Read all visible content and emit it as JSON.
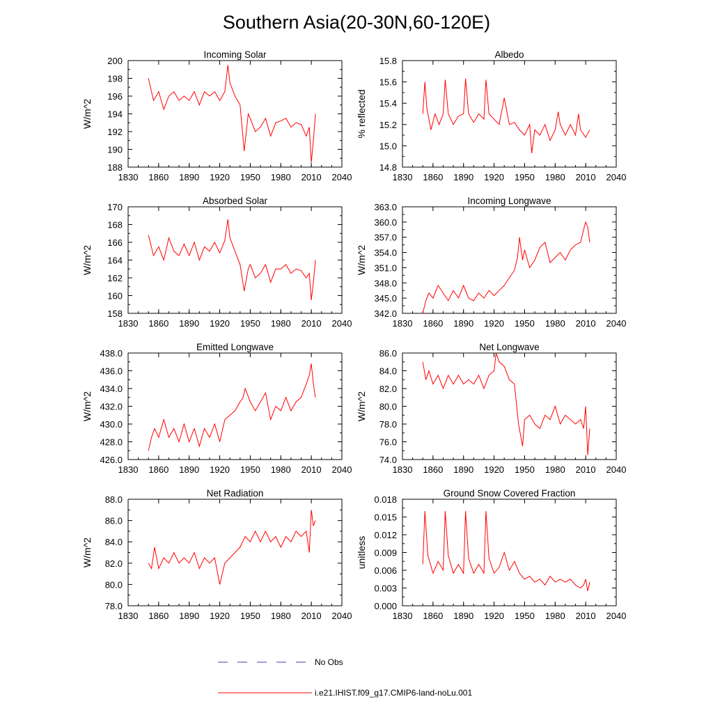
{
  "figure": {
    "title": "Southern Asia(20-30N,60-120E)",
    "legend": [
      {
        "label": "No Obs",
        "style": "dashed",
        "color": "#3b3bb0"
      },
      {
        "label": "i.e21.IHIST.f09_g17.CMIP6-land-noLu.001",
        "style": "solid",
        "color": "#ff0000"
      }
    ]
  },
  "chart_data": [
    {
      "type": "line",
      "title": "Incoming Solar",
      "xlabel": "",
      "ylabel": "W/m^2",
      "xlim": [
        1830,
        2040
      ],
      "ylim": [
        188,
        200
      ],
      "xticks": [
        "1830",
        "1860",
        "1890",
        "1920",
        "1950",
        "1980",
        "2010",
        "2040"
      ],
      "yticks": [
        "188",
        "190",
        "192",
        "194",
        "196",
        "198",
        "200"
      ],
      "series": [
        {
          "name": "i.e21.IHIST.f09_g17.CMIP6-land-noLu.001",
          "color": "#ff0000",
          "x": [
            1850,
            1855,
            1860,
            1865,
            1870,
            1875,
            1880,
            1885,
            1890,
            1895,
            1900,
            1905,
            1910,
            1915,
            1920,
            1925,
            1928,
            1930,
            1935,
            1940,
            1944,
            1948,
            1950,
            1955,
            1960,
            1965,
            1970,
            1975,
            1980,
            1985,
            1990,
            1995,
            2000,
            2005,
            2008,
            2010,
            2012,
            2014
          ],
          "values": [
            198,
            195.5,
            196.5,
            194.5,
            196,
            196.5,
            195.5,
            196,
            195.5,
            196.5,
            195,
            196.5,
            196,
            196.5,
            195.5,
            196.5,
            199.5,
            197.5,
            196,
            195,
            189.8,
            194,
            193.5,
            192,
            192.5,
            193.5,
            191.5,
            193,
            193.2,
            193.5,
            192.5,
            193,
            192.8,
            191.5,
            192.5,
            188.5,
            191,
            194
          ]
        }
      ]
    },
    {
      "type": "line",
      "title": "Albedo",
      "xlabel": "",
      "ylabel": "% reflected",
      "xlim": [
        1830,
        2040
      ],
      "ylim": [
        14.8,
        15.8
      ],
      "xticks": [
        "1830",
        "1860",
        "1890",
        "1920",
        "1950",
        "1980",
        "2010",
        "2040"
      ],
      "yticks": [
        "14.8",
        "15.0",
        "15.2",
        "15.4",
        "15.6",
        "15.8"
      ],
      "series": [
        {
          "name": "i.e21.IHIST.f09_g17.CMIP6-land-noLu.001",
          "color": "#ff0000",
          "x": [
            1850,
            1852,
            1854,
            1858,
            1862,
            1866,
            1870,
            1872,
            1875,
            1880,
            1885,
            1890,
            1892,
            1895,
            1900,
            1905,
            1910,
            1912,
            1915,
            1920,
            1925,
            1930,
            1935,
            1940,
            1945,
            1950,
            1955,
            1957,
            1960,
            1965,
            1970,
            1975,
            1980,
            1983,
            1985,
            1990,
            1995,
            2000,
            2003,
            2005,
            2010,
            2014
          ],
          "values": [
            15.3,
            15.6,
            15.35,
            15.15,
            15.3,
            15.2,
            15.3,
            15.62,
            15.3,
            15.2,
            15.28,
            15.3,
            15.63,
            15.3,
            15.22,
            15.3,
            15.25,
            15.62,
            15.3,
            15.25,
            15.2,
            15.45,
            15.2,
            15.22,
            15.15,
            15.1,
            15.2,
            14.93,
            15.15,
            15.1,
            15.2,
            15.05,
            15.15,
            15.32,
            15.2,
            15.1,
            15.2,
            15.1,
            15.3,
            15.15,
            15.08,
            15.15
          ]
        }
      ]
    },
    {
      "type": "line",
      "title": "Absorbed Solar",
      "xlabel": "",
      "ylabel": "W/m^2",
      "xlim": [
        1830,
        2040
      ],
      "ylim": [
        158,
        170
      ],
      "xticks": [
        "1830",
        "1860",
        "1890",
        "1920",
        "1950",
        "1980",
        "2010",
        "2040"
      ],
      "yticks": [
        "158",
        "160",
        "162",
        "164",
        "166",
        "168",
        "170"
      ],
      "series": [
        {
          "name": "i.e21.IHIST.f09_g17.CMIP6-land-noLu.001",
          "color": "#ff0000",
          "x": [
            1850,
            1855,
            1860,
            1865,
            1870,
            1875,
            1880,
            1885,
            1890,
            1895,
            1900,
            1905,
            1910,
            1915,
            1920,
            1925,
            1928,
            1930,
            1935,
            1940,
            1944,
            1948,
            1950,
            1955,
            1960,
            1965,
            1970,
            1975,
            1980,
            1985,
            1990,
            1995,
            2000,
            2005,
            2008,
            2010,
            2012,
            2014
          ],
          "values": [
            166.8,
            164.5,
            165.5,
            164,
            166.5,
            165,
            164.5,
            165.8,
            164.5,
            166,
            164,
            165.5,
            165,
            166,
            164.8,
            166.2,
            168.6,
            166.5,
            165,
            163.5,
            160.5,
            163,
            163.5,
            162,
            162.5,
            163.5,
            161.5,
            163,
            163,
            163.5,
            162.5,
            163,
            162.8,
            162,
            162.5,
            159.5,
            161.5,
            164
          ]
        }
      ]
    },
    {
      "type": "line",
      "title": "Incoming Longwave",
      "xlabel": "",
      "ylabel": "W/m^2",
      "xlim": [
        1830,
        2040
      ],
      "ylim": [
        342,
        363
      ],
      "xticks": [
        "1830",
        "1860",
        "1890",
        "1920",
        "1950",
        "1980",
        "2010",
        "2040"
      ],
      "yticks": [
        "342.0",
        "345.0",
        "348.0",
        "351.0",
        "354.0",
        "357.0",
        "360.0",
        "363.0"
      ],
      "series": [
        {
          "name": "i.e21.IHIST.f09_g17.CMIP6-land-noLu.001",
          "color": "#ff0000",
          "x": [
            1850,
            1853,
            1856,
            1860,
            1865,
            1870,
            1875,
            1880,
            1885,
            1890,
            1895,
            1900,
            1905,
            1910,
            1915,
            1920,
            1925,
            1930,
            1935,
            1940,
            1943,
            1945,
            1948,
            1950,
            1955,
            1960,
            1965,
            1970,
            1975,
            1980,
            1985,
            1990,
            1995,
            2000,
            2005,
            2008,
            2010,
            2012,
            2014
          ],
          "values": [
            342,
            344.5,
            346,
            345,
            347.5,
            346,
            344.5,
            346.5,
            345,
            347.5,
            345,
            344.5,
            346,
            345,
            346.5,
            345.5,
            346.5,
            347.5,
            349,
            350.5,
            353,
            357,
            352.5,
            354.5,
            351,
            352.5,
            355,
            356,
            352,
            353,
            354,
            352.5,
            354.5,
            355.5,
            356,
            358.5,
            360,
            359,
            356
          ]
        }
      ]
    },
    {
      "type": "line",
      "title": "Emitted Longwave",
      "xlabel": "",
      "ylabel": "W/m^2",
      "xlim": [
        1830,
        2040
      ],
      "ylim": [
        426,
        438
      ],
      "xticks": [
        "1830",
        "1860",
        "1890",
        "1920",
        "1950",
        "1980",
        "2010",
        "2040"
      ],
      "yticks": [
        "426.0",
        "428.0",
        "430.0",
        "432.0",
        "434.0",
        "436.0",
        "438.0"
      ],
      "series": [
        {
          "name": "i.e21.IHIST.f09_g17.CMIP6-land-noLu.001",
          "color": "#ff0000",
          "x": [
            1850,
            1853,
            1856,
            1860,
            1865,
            1870,
            1875,
            1880,
            1885,
            1890,
            1895,
            1900,
            1905,
            1910,
            1915,
            1920,
            1925,
            1930,
            1935,
            1940,
            1943,
            1945,
            1950,
            1955,
            1960,
            1965,
            1970,
            1975,
            1980,
            1985,
            1990,
            1995,
            2000,
            2005,
            2008,
            2010,
            2012,
            2014
          ],
          "values": [
            427,
            428.5,
            429.5,
            428.5,
            430.5,
            428.5,
            429.5,
            428,
            430,
            428,
            429.5,
            427.5,
            429.5,
            428.5,
            430,
            428,
            430.5,
            431,
            431.5,
            432.5,
            433,
            434,
            432.5,
            431.5,
            432.5,
            433.5,
            430.5,
            432,
            431.5,
            433,
            431.5,
            432.5,
            433,
            434.5,
            435.5,
            436.8,
            434.5,
            433
          ]
        }
      ]
    },
    {
      "type": "line",
      "title": "Net Longwave",
      "xlabel": "",
      "ylabel": "W/m^2",
      "xlim": [
        1830,
        2040
      ],
      "ylim": [
        74,
        86
      ],
      "xticks": [
        "1830",
        "1860",
        "1890",
        "1920",
        "1950",
        "1980",
        "2010",
        "2040"
      ],
      "yticks": [
        "74.0",
        "76.0",
        "78.0",
        "80.0",
        "82.0",
        "84.0",
        "86.0"
      ],
      "series": [
        {
          "name": "i.e21.IHIST.f09_g17.CMIP6-land-noLu.001",
          "color": "#ff0000",
          "x": [
            1850,
            1853,
            1856,
            1860,
            1865,
            1870,
            1875,
            1880,
            1885,
            1890,
            1895,
            1900,
            1905,
            1910,
            1915,
            1920,
            1922,
            1925,
            1930,
            1935,
            1940,
            1944,
            1948,
            1950,
            1955,
            1960,
            1965,
            1970,
            1975,
            1980,
            1985,
            1990,
            1995,
            2000,
            2005,
            2008,
            2010,
            2012,
            2014
          ],
          "values": [
            85,
            83,
            84,
            82.5,
            83.5,
            82,
            83.5,
            82.5,
            83.5,
            82.5,
            83,
            82.5,
            83.5,
            82,
            83.5,
            84,
            86,
            85,
            84.5,
            83,
            82.5,
            78,
            75.5,
            78.5,
            79,
            78,
            77.5,
            79,
            78.5,
            80,
            78,
            79,
            78.5,
            78,
            78.5,
            77.5,
            80,
            74.5,
            77.5
          ]
        }
      ]
    },
    {
      "type": "line",
      "title": "Net Radiation",
      "xlabel": "",
      "ylabel": "W/m^2",
      "xlim": [
        1830,
        2040
      ],
      "ylim": [
        78,
        88
      ],
      "xticks": [
        "1830",
        "1860",
        "1890",
        "1920",
        "1950",
        "1980",
        "2010",
        "2040"
      ],
      "yticks": [
        "78.0",
        "80.0",
        "82.0",
        "84.0",
        "86.0",
        "88.0"
      ],
      "series": [
        {
          "name": "i.e21.IHIST.f09_g17.CMIP6-land-noLu.001",
          "color": "#ff0000",
          "x": [
            1850,
            1853,
            1856,
            1860,
            1865,
            1870,
            1875,
            1880,
            1885,
            1890,
            1895,
            1900,
            1905,
            1910,
            1915,
            1920,
            1925,
            1930,
            1935,
            1940,
            1945,
            1950,
            1955,
            1960,
            1965,
            1970,
            1975,
            1980,
            1985,
            1990,
            1995,
            2000,
            2005,
            2008,
            2010,
            2012,
            2014
          ],
          "values": [
            82,
            81.5,
            83.5,
            81.5,
            82.5,
            82,
            83,
            82,
            82.5,
            82,
            83,
            81.5,
            82.5,
            82,
            82.5,
            80,
            82,
            82.5,
            83,
            83.5,
            84.5,
            84,
            85,
            84,
            85,
            84,
            84.5,
            83.5,
            84.5,
            84,
            85,
            84.5,
            85,
            83,
            87,
            85.5,
            86
          ]
        }
      ]
    },
    {
      "type": "line",
      "title": "Ground Snow Covered Fraction",
      "xlabel": "",
      "ylabel": "unitless",
      "xlim": [
        1830,
        2040
      ],
      "ylim": [
        0,
        0.018
      ],
      "xticks": [
        "1830",
        "1860",
        "1890",
        "1920",
        "1950",
        "1980",
        "2010",
        "2040"
      ],
      "yticks": [
        "0.000",
        "0.003",
        "0.006",
        "0.009",
        "0.012",
        "0.015",
        "0.018"
      ],
      "series": [
        {
          "name": "i.e21.IHIST.f09_g17.CMIP6-land-noLu.001",
          "color": "#ff0000",
          "x": [
            1850,
            1852,
            1855,
            1860,
            1865,
            1870,
            1872,
            1875,
            1880,
            1885,
            1890,
            1892,
            1895,
            1900,
            1905,
            1910,
            1912,
            1915,
            1920,
            1925,
            1930,
            1935,
            1940,
            1945,
            1950,
            1955,
            1960,
            1965,
            1970,
            1975,
            1980,
            1985,
            1990,
            1995,
            2000,
            2005,
            2008,
            2010,
            2012,
            2014
          ],
          "values": [
            0.007,
            0.016,
            0.0085,
            0.0055,
            0.0075,
            0.006,
            0.016,
            0.0085,
            0.0055,
            0.007,
            0.0055,
            0.016,
            0.008,
            0.0055,
            0.007,
            0.0055,
            0.016,
            0.008,
            0.0055,
            0.0065,
            0.009,
            0.006,
            0.0075,
            0.0055,
            0.0045,
            0.005,
            0.004,
            0.0045,
            0.0035,
            0.005,
            0.004,
            0.0045,
            0.004,
            0.0045,
            0.0035,
            0.003,
            0.0035,
            0.0045,
            0.0025,
            0.004
          ]
        }
      ]
    }
  ]
}
